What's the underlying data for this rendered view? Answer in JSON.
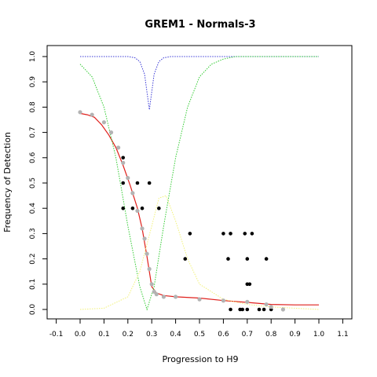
{
  "chart_data": {
    "type": "scatter",
    "title": "GREM1 - Normals-3",
    "xlabel": "Progression to H9",
    "ylabel": "Frequency of Detection",
    "xlim": [
      -0.1,
      1.1
    ],
    "ylim": [
      0.0,
      1.0
    ],
    "x_ticks": [
      "-0.1",
      "0.0",
      "0.1",
      "0.2",
      "0.3",
      "0.4",
      "0.5",
      "0.6",
      "0.7",
      "0.8",
      "0.9",
      "1.0",
      "1.1"
    ],
    "y_ticks": [
      "0.0",
      "0.1",
      "0.2",
      "0.3",
      "0.4",
      "0.5",
      "0.6",
      "0.7",
      "0.8",
      "0.9",
      "1.0"
    ],
    "grid": false,
    "legend": "none",
    "colors": {
      "observed_points": "#000000",
      "smoothed_points": "#b3b3b3",
      "fitted_curve": "#e0201c",
      "blue_curve": "#3b3bd6",
      "green_curve": "#33cc33",
      "yellow_curve": "#f2f27a"
    },
    "series": [
      {
        "style": "points",
        "color": "#000000",
        "x": [
          0.18,
          0.18,
          0.18,
          0.22,
          0.24,
          0.26,
          0.29,
          0.33,
          0.44,
          0.46,
          0.6,
          0.62,
          0.63,
          0.69,
          0.7,
          0.7,
          0.71,
          0.72,
          0.78,
          0.63,
          0.67,
          0.68,
          0.7,
          0.75,
          0.77,
          0.8
        ],
        "y": [
          0.6,
          0.5,
          0.4,
          0.4,
          0.5,
          0.4,
          0.5,
          0.4,
          0.2,
          0.3,
          0.3,
          0.2,
          0.3,
          0.3,
          0.2,
          0.1,
          0.1,
          0.3,
          0.2,
          0.0,
          0.0,
          0.0,
          0.0,
          0.0,
          0.0,
          0.0
        ]
      },
      {
        "style": "thick-points",
        "color": "#b3b3b3",
        "x": [
          0.0,
          0.05,
          0.1,
          0.13,
          0.16,
          0.18,
          0.2,
          0.22,
          0.24,
          0.26,
          0.27,
          0.28,
          0.29,
          0.3,
          0.31,
          0.32,
          0.35,
          0.4,
          0.5,
          0.6,
          0.7,
          0.78,
          0.8,
          0.85
        ],
        "y": [
          0.78,
          0.77,
          0.74,
          0.7,
          0.64,
          0.58,
          0.52,
          0.46,
          0.39,
          0.32,
          0.28,
          0.22,
          0.16,
          0.1,
          0.07,
          0.06,
          0.05,
          0.05,
          0.04,
          0.035,
          0.03,
          0.02,
          0.01,
          0.0
        ]
      },
      {
        "style": "solid-line",
        "color": "#e0201c",
        "x": [
          0.0,
          0.03,
          0.06,
          0.09,
          0.12,
          0.15,
          0.18,
          0.21,
          0.24,
          0.26,
          0.28,
          0.3,
          0.32,
          0.35,
          0.4,
          0.5,
          0.6,
          0.7,
          0.8,
          0.9,
          1.0
        ],
        "y": [
          0.775,
          0.77,
          0.76,
          0.73,
          0.69,
          0.64,
          0.57,
          0.49,
          0.4,
          0.32,
          0.21,
          0.09,
          0.065,
          0.055,
          0.05,
          0.045,
          0.035,
          0.028,
          0.02,
          0.018,
          0.018
        ]
      },
      {
        "style": "dotted-line",
        "color": "#3b3bd6",
        "x": [
          0.0,
          0.2,
          0.23,
          0.25,
          0.27,
          0.28,
          0.29,
          0.3,
          0.31,
          0.33,
          0.35,
          0.38,
          0.5,
          1.0
        ],
        "y": [
          1.0,
          1.0,
          0.995,
          0.98,
          0.93,
          0.86,
          0.79,
          0.86,
          0.93,
          0.98,
          0.995,
          1.0,
          1.0,
          1.0
        ]
      },
      {
        "style": "dotted-line",
        "color": "#33cc33",
        "x": [
          0.0,
          0.05,
          0.1,
          0.15,
          0.2,
          0.25,
          0.28,
          0.31,
          0.35,
          0.4,
          0.45,
          0.5,
          0.55,
          0.6,
          0.65,
          1.0
        ],
        "y": [
          0.97,
          0.92,
          0.8,
          0.6,
          0.33,
          0.09,
          0.0,
          0.09,
          0.33,
          0.6,
          0.8,
          0.92,
          0.97,
          0.99,
          1.0,
          1.0
        ]
      },
      {
        "style": "dotted-line",
        "color": "#f2f27a",
        "x": [
          0.0,
          0.1,
          0.2,
          0.25,
          0.3,
          0.33,
          0.36,
          0.4,
          0.45,
          0.5,
          0.6,
          0.7,
          0.8,
          1.0
        ],
        "y": [
          0.0,
          0.005,
          0.05,
          0.15,
          0.33,
          0.44,
          0.45,
          0.35,
          0.2,
          0.1,
          0.04,
          0.02,
          0.01,
          0.0
        ]
      }
    ]
  }
}
